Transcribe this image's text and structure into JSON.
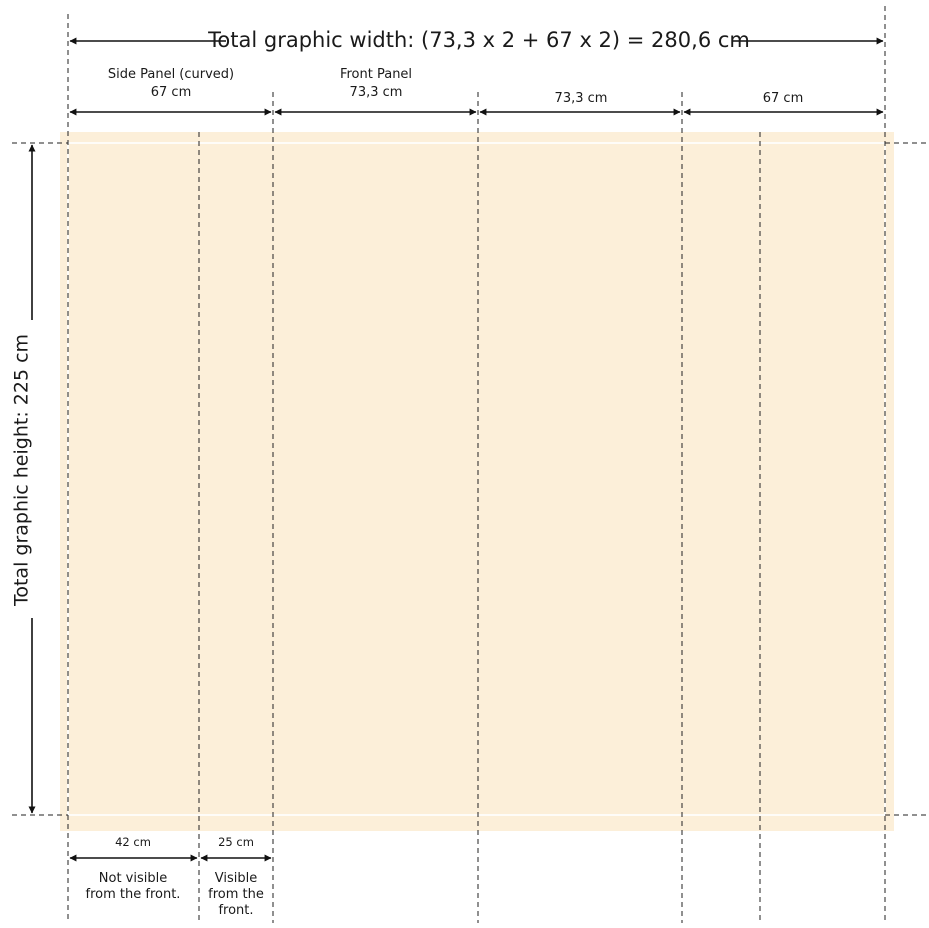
{
  "colors": {
    "panel_fill": "#fcefd9",
    "inner_frame": "#ffffff",
    "line": "#111111"
  },
  "total_width_label": "Total graphic width: (73,3 x 2 + 67 x 2) = 280,6 cm",
  "total_height_label": "Total graphic height: 225 cm",
  "panels": [
    {
      "title": "Side Panel (curved)",
      "width_label": "67 cm"
    },
    {
      "title": "Front Panel",
      "width_label": "73,3 cm"
    },
    {
      "title": "",
      "width_label": "73,3 cm"
    },
    {
      "title": "",
      "width_label": "67 cm"
    }
  ],
  "side_split": [
    {
      "width_label": "42 cm",
      "note": [
        "Not visible",
        "from the front."
      ]
    },
    {
      "width_label": "25 cm",
      "note": [
        "Visible",
        "from the",
        "front."
      ]
    }
  ]
}
